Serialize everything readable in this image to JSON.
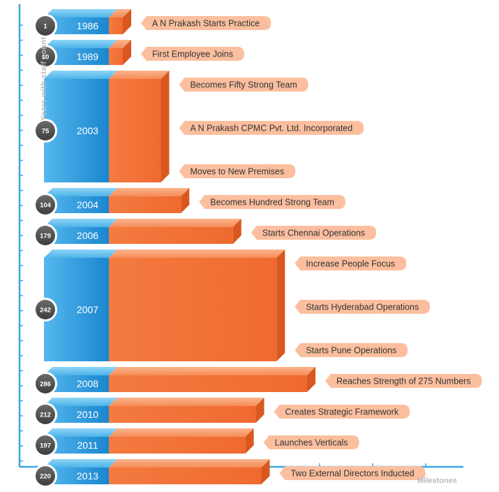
{
  "axis_labels": {
    "y": "Years with staff count",
    "x": "Milestones"
  },
  "colors": {
    "blue": "#1f8fd6",
    "blue_light": "#6ec3f0",
    "orange": "#f2733a",
    "orange_light": "#f9a77e",
    "pill": "#fbbf9f",
    "circle": "#555555",
    "axis": "#39a5e0"
  },
  "chart_data": {
    "type": "bar",
    "xlabel": "Milestones",
    "ylabel": "Years with staff count",
    "grid": false,
    "rows": [
      {
        "year": "1986",
        "staff_count": 1,
        "milestones": [
          "A N Prakash Starts Practice"
        ]
      },
      {
        "year": "1989",
        "staff_count": 10,
        "milestones": [
          "First Employee Joins"
        ]
      },
      {
        "year": "2003",
        "staff_count": 75,
        "milestones": [
          "Becomes Fifty Strong Team",
          "A N Prakash CPMC Pvt. Ltd. Incorporated",
          "Moves to New Premises"
        ]
      },
      {
        "year": "2004",
        "staff_count": 104,
        "milestones": [
          "Becomes Hundred Strong Team"
        ]
      },
      {
        "year": "2006",
        "staff_count": 179,
        "milestones": [
          "Starts Chennai Operations"
        ]
      },
      {
        "year": "2007",
        "staff_count": 242,
        "milestones": [
          "Increase People Focus",
          "Starts Hyderabad Operations",
          "Starts Pune Operations"
        ]
      },
      {
        "year": "2008",
        "staff_count": 286,
        "milestones": [
          "Reaches Strength of 275 Numbers"
        ]
      },
      {
        "year": "2010",
        "staff_count": 212,
        "milestones": [
          "Creates Strategic Framework"
        ]
      },
      {
        "year": "2011",
        "staff_count": 197,
        "milestones": [
          "Launches Verticals"
        ]
      },
      {
        "year": "2013",
        "staff_count": 220,
        "milestones": [
          "Two External Directors Inducted"
        ]
      }
    ]
  }
}
